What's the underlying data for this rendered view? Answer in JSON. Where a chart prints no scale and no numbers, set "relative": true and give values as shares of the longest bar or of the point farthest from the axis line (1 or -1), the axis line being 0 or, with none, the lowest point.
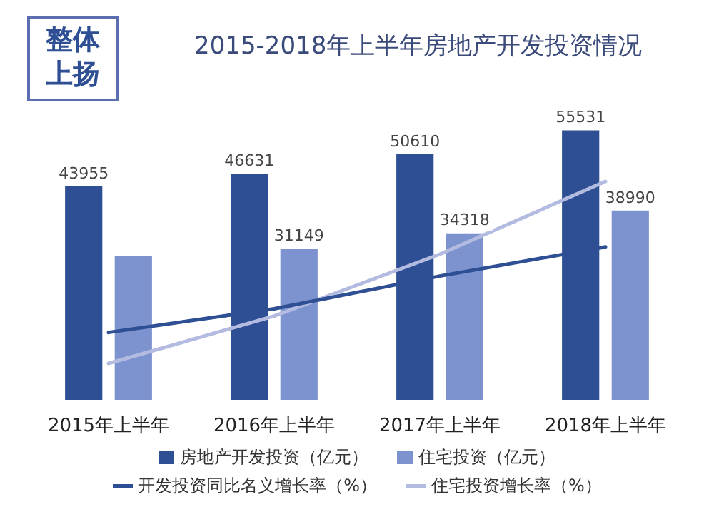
{
  "chart_data": [
    {
      "type": "bar",
      "title": "2015-2018年上半年房地产开发投资情况",
      "annotations": [
        "整体上扬"
      ],
      "categories": [
        "2015年上半年",
        "2016年上半年",
        "2017年上半年",
        "2018年上半年"
      ],
      "series": [
        {
          "name": "房地产开发投资（亿元）",
          "color": "#2f4f94",
          "values": [
            43955,
            46631,
            50610,
            55531
          ],
          "value_labels": [
            "43955",
            "46631",
            "50610",
            "55531"
          ]
        },
        {
          "name": "住宅投资（亿元）",
          "color": "#7d93cf",
          "values": [
            29601,
            31149,
            34318,
            38990
          ],
          "value_labels": [
            null,
            "31149",
            "34318",
            "38990"
          ]
        }
      ],
      "legend": "bottom",
      "grid": false,
      "tick_labels": "x"
    },
    {
      "type": "line",
      "relative": true,
      "categories": [
        null,
        null,
        null,
        null
      ],
      "series": [
        {
          "name": "开发投资同比名义增长率（%）",
          "color": "#2f4f94",
          "values": [
            0.17,
            0.3,
            0.48,
            0.64
          ]
        },
        {
          "name": "住宅投资增长率（%）",
          "color": "#b3bce0",
          "values": [
            0,
            0.26,
            0.6,
            1
          ]
        }
      ],
      "marker": "none",
      "line_style": "solid",
      "legend": "bottom",
      "grid": false,
      "tick_labels": false
    }
  ]
}
